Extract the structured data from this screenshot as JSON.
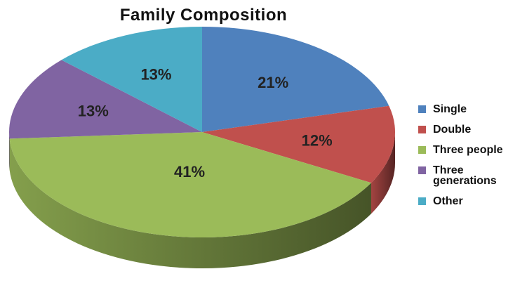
{
  "chart_data": {
    "type": "pie",
    "title": "Family Composition",
    "slices": [
      {
        "label": "Single",
        "value": 21,
        "display": "21%",
        "color": "#4F81BD"
      },
      {
        "label": "Double",
        "value": 12,
        "display": "12%",
        "color": "#C0504D"
      },
      {
        "label": "Three people",
        "value": 41,
        "display": "41%",
        "color": "#9BBB59"
      },
      {
        "label": "Three\ngenerations",
        "value": 13,
        "display": "13%",
        "color": "#8064A2"
      },
      {
        "label": "Other",
        "value": 13,
        "display": "13%",
        "color": "#4BACC6"
      }
    ],
    "legend_position": "right",
    "style": "3d"
  }
}
